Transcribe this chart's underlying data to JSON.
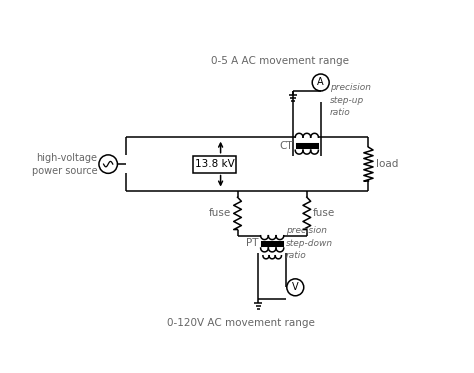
{
  "bg_color": "#ffffff",
  "line_color": "#000000",
  "text_color": "#666666",
  "top_label": "0-5 A AC movement range",
  "bottom_label": "0-120V AC movement range",
  "voltage_label": "13.8 kV",
  "load_label": "load",
  "ct_label": "CT",
  "pt_label": "PT",
  "precision_stepup": "precision\nstep-up\nratio",
  "precision_stepdown": "precision\nstep-down\nratio",
  "source_label": "high-voltage\npower source",
  "fuse_label1": "fuse",
  "fuse_label2": "fuse"
}
